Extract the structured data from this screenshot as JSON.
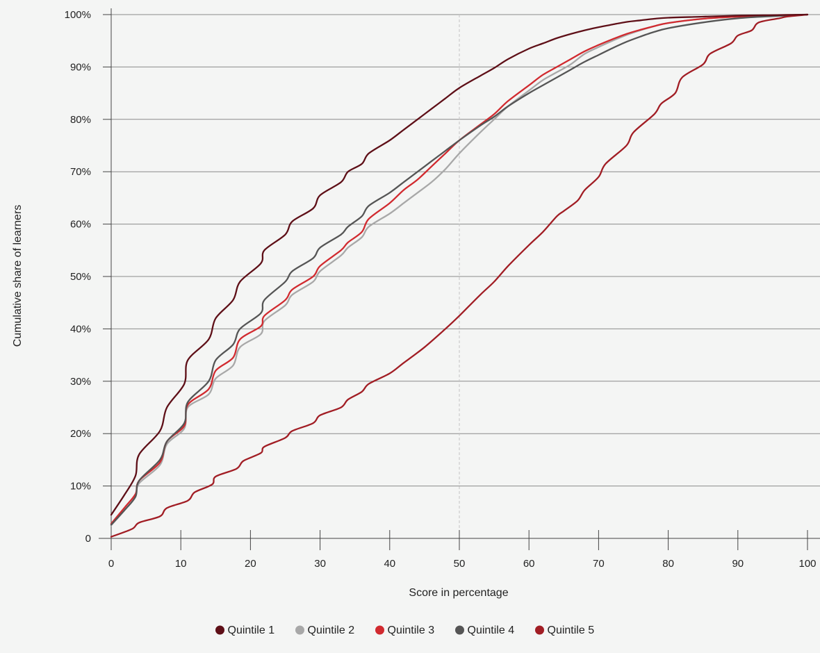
{
  "chart_data": {
    "type": "line",
    "title": "",
    "xlabel": "Score in percentage",
    "ylabel": "Cumulative share of learners",
    "xlim": [
      0,
      100
    ],
    "ylim": [
      0,
      100
    ],
    "x_ticks": [
      0,
      10,
      20,
      30,
      40,
      50,
      60,
      70,
      80,
      90,
      100
    ],
    "x_tick_labels": [
      "0",
      "10",
      "20",
      "30",
      "40",
      "50",
      "60",
      "70",
      "80",
      "90",
      "100"
    ],
    "y_ticks": [
      0,
      10,
      20,
      30,
      40,
      50,
      60,
      70,
      80,
      90,
      100
    ],
    "y_tick_labels": [
      "0",
      "10%",
      "20%",
      "30%",
      "40%",
      "50%",
      "60%",
      "70%",
      "80%",
      "90%",
      "100%"
    ],
    "grid": "horizontal",
    "reference_line_x": 50,
    "legend_position": "bottom-center",
    "series": [
      {
        "name": "Quintile 1",
        "color": "#5e0f17",
        "x": [
          0,
          2,
          3.5,
          4,
          7,
          8,
          10.5,
          11,
          14,
          15,
          17.5,
          18.5,
          21.5,
          22,
          25,
          26,
          29,
          30,
          33,
          34,
          36,
          37,
          40,
          42,
          44,
          46,
          48,
          50,
          53,
          55,
          57,
          60,
          62,
          64,
          66,
          68,
          70,
          72,
          74,
          76,
          78,
          80,
          85,
          90,
          95,
          100
        ],
        "y": [
          4.5,
          8.5,
          12,
          16,
          20.5,
          25,
          29.5,
          34,
          38,
          42,
          45.5,
          49,
          52.5,
          55,
          58,
          60.5,
          63,
          65.5,
          68,
          70,
          71.5,
          73.5,
          76,
          78,
          80,
          82,
          84,
          86,
          88.3,
          89.8,
          91.5,
          93.5,
          94.5,
          95.5,
          96.3,
          97,
          97.6,
          98.1,
          98.6,
          98.9,
          99.2,
          99.4,
          99.6,
          99.8,
          99.9,
          100
        ]
      },
      {
        "name": "Quintile 2",
        "color": "#a8a8a8",
        "x": [
          0,
          2,
          3.5,
          4,
          7,
          8,
          10.5,
          11,
          14,
          15,
          17.5,
          18.5,
          21.5,
          22,
          25,
          26,
          29,
          30,
          33,
          34,
          36,
          37,
          40,
          42,
          44,
          46,
          48,
          50,
          53,
          55,
          57,
          60,
          62,
          64,
          66,
          68,
          70,
          72,
          74,
          76,
          78,
          80,
          85,
          90,
          95,
          100
        ],
        "y": [
          2.5,
          5.5,
          8,
          10.5,
          14,
          18,
          21,
          25,
          27.5,
          30.5,
          33,
          36.5,
          39,
          41.5,
          44.5,
          46.5,
          49,
          51,
          54,
          55.5,
          57.5,
          59.5,
          62,
          64,
          66,
          68,
          70.5,
          73.5,
          77.5,
          80,
          82.5,
          85.5,
          87.5,
          89,
          90.5,
          92.5,
          93.8,
          95,
          96.1,
          97,
          97.8,
          98.4,
          99.2,
          99.6,
          99.8,
          100
        ]
      },
      {
        "name": "Quintile 3",
        "color": "#d12a2f",
        "x": [
          0,
          2,
          3.5,
          4,
          7,
          8,
          10.5,
          11,
          14,
          15,
          17.5,
          18.5,
          21.5,
          22,
          25,
          26,
          29,
          30,
          33,
          34,
          36,
          37,
          40,
          42,
          44,
          46,
          48,
          50,
          53,
          55,
          57,
          60,
          62,
          64,
          66,
          68,
          70,
          72,
          74,
          76,
          78,
          80,
          85,
          90,
          95,
          100
        ],
        "y": [
          2.8,
          6,
          8.5,
          11,
          14.5,
          18.5,
          21.5,
          25.5,
          28.5,
          32,
          34.5,
          38,
          40.5,
          42.5,
          45.5,
          47.5,
          50,
          52,
          55,
          56.5,
          58.5,
          61,
          64,
          66.5,
          68.5,
          71,
          73.5,
          76,
          79,
          81,
          83.5,
          86.5,
          88.5,
          90,
          91.5,
          93,
          94.2,
          95.3,
          96.3,
          97.1,
          97.8,
          98.4,
          99.2,
          99.6,
          99.8,
          100
        ]
      },
      {
        "name": "Quintile 4",
        "color": "#555555",
        "x": [
          0,
          2,
          3.5,
          4,
          7,
          8,
          10.5,
          11,
          14,
          15,
          17.5,
          18.5,
          21.5,
          22,
          25,
          26,
          29,
          30,
          33,
          34,
          36,
          37,
          40,
          42,
          44,
          46,
          48,
          50,
          53,
          55,
          57,
          60,
          62,
          64,
          66,
          68,
          70,
          72,
          74,
          76,
          78,
          80,
          85,
          90,
          95,
          100
        ],
        "y": [
          2.6,
          5.5,
          8,
          11,
          15,
          18.5,
          22,
          26,
          30,
          34,
          37,
          40,
          43,
          45.5,
          49,
          51,
          53.5,
          55.5,
          58,
          59.5,
          61.5,
          63.5,
          66,
          68,
          70,
          72,
          74,
          76,
          78.8,
          80.5,
          82.5,
          85,
          86.5,
          88,
          89.5,
          91,
          92.3,
          93.6,
          94.8,
          95.8,
          96.7,
          97.4,
          98.5,
          99.3,
          99.7,
          100
        ]
      },
      {
        "name": "Quintile 5",
        "color": "#a11d24",
        "x": [
          0,
          3,
          4,
          7,
          8,
          11,
          12,
          14.5,
          15,
          18,
          19,
          21.5,
          22,
          25,
          26,
          29,
          30,
          33,
          34,
          36,
          37,
          40,
          42,
          45,
          48,
          50,
          53,
          55,
          57,
          60,
          62,
          64,
          65,
          67,
          68,
          70,
          71,
          74,
          75,
          78,
          79,
          81,
          82,
          85,
          86,
          89,
          90,
          92,
          93,
          96,
          97,
          100
        ],
        "y": [
          0.3,
          1.8,
          3,
          4.2,
          5.8,
          7.2,
          8.8,
          10.3,
          11.8,
          13.3,
          14.8,
          16.3,
          17.5,
          19.2,
          20.5,
          22,
          23.5,
          25,
          26.5,
          28,
          29.5,
          31.5,
          33.5,
          36.5,
          40,
          42.5,
          46.5,
          49,
          52,
          56,
          58.5,
          61.5,
          62.5,
          64.5,
          66.5,
          69,
          71.5,
          75,
          77.5,
          81,
          83,
          85,
          88,
          90.5,
          92.5,
          94.5,
          96,
          97,
          98.5,
          99.3,
          99.6,
          100
        ]
      }
    ]
  }
}
